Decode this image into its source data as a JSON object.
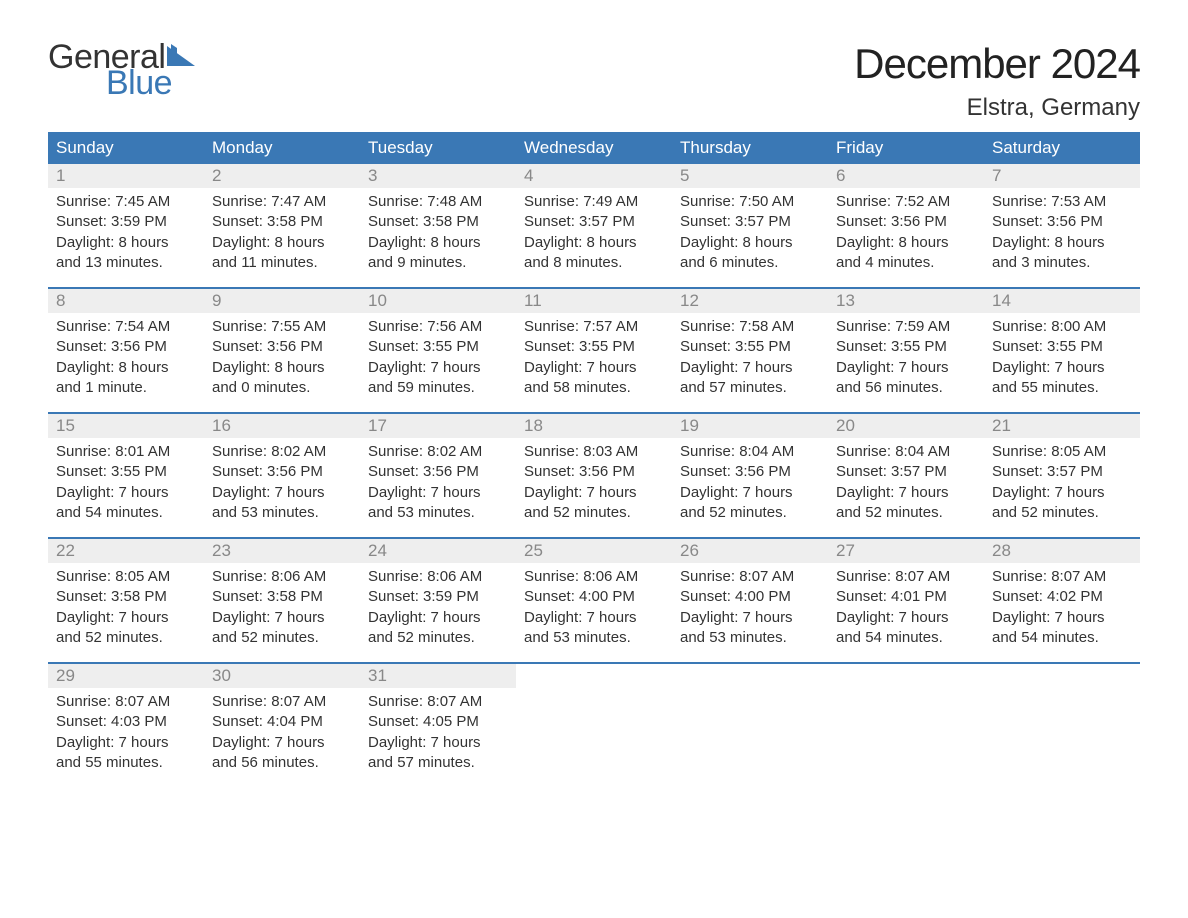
{
  "logo": {
    "text_general": "General",
    "text_blue": "Blue",
    "flag_color": "#3a78b5"
  },
  "title": "December 2024",
  "location": "Elstra, Germany",
  "colors": {
    "header_bg": "#3a78b5",
    "header_text": "#ffffff",
    "daynum_bg": "#eeeeee",
    "daynum_text": "#888888",
    "body_text": "#333333",
    "week_border": "#3a78b5",
    "page_bg": "#ffffff"
  },
  "fonts": {
    "title_size_pt": 42,
    "location_size_pt": 24,
    "weekday_size_pt": 17,
    "daynum_size_pt": 17,
    "body_size_pt": 15,
    "logo_size_pt": 34
  },
  "weekdays": [
    "Sunday",
    "Monday",
    "Tuesday",
    "Wednesday",
    "Thursday",
    "Friday",
    "Saturday"
  ],
  "weeks": [
    [
      {
        "num": "1",
        "sunrise": "Sunrise: 7:45 AM",
        "sunset": "Sunset: 3:59 PM",
        "day1": "Daylight: 8 hours",
        "day2": "and 13 minutes."
      },
      {
        "num": "2",
        "sunrise": "Sunrise: 7:47 AM",
        "sunset": "Sunset: 3:58 PM",
        "day1": "Daylight: 8 hours",
        "day2": "and 11 minutes."
      },
      {
        "num": "3",
        "sunrise": "Sunrise: 7:48 AM",
        "sunset": "Sunset: 3:58 PM",
        "day1": "Daylight: 8 hours",
        "day2": "and 9 minutes."
      },
      {
        "num": "4",
        "sunrise": "Sunrise: 7:49 AM",
        "sunset": "Sunset: 3:57 PM",
        "day1": "Daylight: 8 hours",
        "day2": "and 8 minutes."
      },
      {
        "num": "5",
        "sunrise": "Sunrise: 7:50 AM",
        "sunset": "Sunset: 3:57 PM",
        "day1": "Daylight: 8 hours",
        "day2": "and 6 minutes."
      },
      {
        "num": "6",
        "sunrise": "Sunrise: 7:52 AM",
        "sunset": "Sunset: 3:56 PM",
        "day1": "Daylight: 8 hours",
        "day2": "and 4 minutes."
      },
      {
        "num": "7",
        "sunrise": "Sunrise: 7:53 AM",
        "sunset": "Sunset: 3:56 PM",
        "day1": "Daylight: 8 hours",
        "day2": "and 3 minutes."
      }
    ],
    [
      {
        "num": "8",
        "sunrise": "Sunrise: 7:54 AM",
        "sunset": "Sunset: 3:56 PM",
        "day1": "Daylight: 8 hours",
        "day2": "and 1 minute."
      },
      {
        "num": "9",
        "sunrise": "Sunrise: 7:55 AM",
        "sunset": "Sunset: 3:56 PM",
        "day1": "Daylight: 8 hours",
        "day2": "and 0 minutes."
      },
      {
        "num": "10",
        "sunrise": "Sunrise: 7:56 AM",
        "sunset": "Sunset: 3:55 PM",
        "day1": "Daylight: 7 hours",
        "day2": "and 59 minutes."
      },
      {
        "num": "11",
        "sunrise": "Sunrise: 7:57 AM",
        "sunset": "Sunset: 3:55 PM",
        "day1": "Daylight: 7 hours",
        "day2": "and 58 minutes."
      },
      {
        "num": "12",
        "sunrise": "Sunrise: 7:58 AM",
        "sunset": "Sunset: 3:55 PM",
        "day1": "Daylight: 7 hours",
        "day2": "and 57 minutes."
      },
      {
        "num": "13",
        "sunrise": "Sunrise: 7:59 AM",
        "sunset": "Sunset: 3:55 PM",
        "day1": "Daylight: 7 hours",
        "day2": "and 56 minutes."
      },
      {
        "num": "14",
        "sunrise": "Sunrise: 8:00 AM",
        "sunset": "Sunset: 3:55 PM",
        "day1": "Daylight: 7 hours",
        "day2": "and 55 minutes."
      }
    ],
    [
      {
        "num": "15",
        "sunrise": "Sunrise: 8:01 AM",
        "sunset": "Sunset: 3:55 PM",
        "day1": "Daylight: 7 hours",
        "day2": "and 54 minutes."
      },
      {
        "num": "16",
        "sunrise": "Sunrise: 8:02 AM",
        "sunset": "Sunset: 3:56 PM",
        "day1": "Daylight: 7 hours",
        "day2": "and 53 minutes."
      },
      {
        "num": "17",
        "sunrise": "Sunrise: 8:02 AM",
        "sunset": "Sunset: 3:56 PM",
        "day1": "Daylight: 7 hours",
        "day2": "and 53 minutes."
      },
      {
        "num": "18",
        "sunrise": "Sunrise: 8:03 AM",
        "sunset": "Sunset: 3:56 PM",
        "day1": "Daylight: 7 hours",
        "day2": "and 52 minutes."
      },
      {
        "num": "19",
        "sunrise": "Sunrise: 8:04 AM",
        "sunset": "Sunset: 3:56 PM",
        "day1": "Daylight: 7 hours",
        "day2": "and 52 minutes."
      },
      {
        "num": "20",
        "sunrise": "Sunrise: 8:04 AM",
        "sunset": "Sunset: 3:57 PM",
        "day1": "Daylight: 7 hours",
        "day2": "and 52 minutes."
      },
      {
        "num": "21",
        "sunrise": "Sunrise: 8:05 AM",
        "sunset": "Sunset: 3:57 PM",
        "day1": "Daylight: 7 hours",
        "day2": "and 52 minutes."
      }
    ],
    [
      {
        "num": "22",
        "sunrise": "Sunrise: 8:05 AM",
        "sunset": "Sunset: 3:58 PM",
        "day1": "Daylight: 7 hours",
        "day2": "and 52 minutes."
      },
      {
        "num": "23",
        "sunrise": "Sunrise: 8:06 AM",
        "sunset": "Sunset: 3:58 PM",
        "day1": "Daylight: 7 hours",
        "day2": "and 52 minutes."
      },
      {
        "num": "24",
        "sunrise": "Sunrise: 8:06 AM",
        "sunset": "Sunset: 3:59 PM",
        "day1": "Daylight: 7 hours",
        "day2": "and 52 minutes."
      },
      {
        "num": "25",
        "sunrise": "Sunrise: 8:06 AM",
        "sunset": "Sunset: 4:00 PM",
        "day1": "Daylight: 7 hours",
        "day2": "and 53 minutes."
      },
      {
        "num": "26",
        "sunrise": "Sunrise: 8:07 AM",
        "sunset": "Sunset: 4:00 PM",
        "day1": "Daylight: 7 hours",
        "day2": "and 53 minutes."
      },
      {
        "num": "27",
        "sunrise": "Sunrise: 8:07 AM",
        "sunset": "Sunset: 4:01 PM",
        "day1": "Daylight: 7 hours",
        "day2": "and 54 minutes."
      },
      {
        "num": "28",
        "sunrise": "Sunrise: 8:07 AM",
        "sunset": "Sunset: 4:02 PM",
        "day1": "Daylight: 7 hours",
        "day2": "and 54 minutes."
      }
    ],
    [
      {
        "num": "29",
        "sunrise": "Sunrise: 8:07 AM",
        "sunset": "Sunset: 4:03 PM",
        "day1": "Daylight: 7 hours",
        "day2": "and 55 minutes."
      },
      {
        "num": "30",
        "sunrise": "Sunrise: 8:07 AM",
        "sunset": "Sunset: 4:04 PM",
        "day1": "Daylight: 7 hours",
        "day2": "and 56 minutes."
      },
      {
        "num": "31",
        "sunrise": "Sunrise: 8:07 AM",
        "sunset": "Sunset: 4:05 PM",
        "day1": "Daylight: 7 hours",
        "day2": "and 57 minutes."
      },
      {
        "empty": true
      },
      {
        "empty": true
      },
      {
        "empty": true
      },
      {
        "empty": true
      }
    ]
  ]
}
